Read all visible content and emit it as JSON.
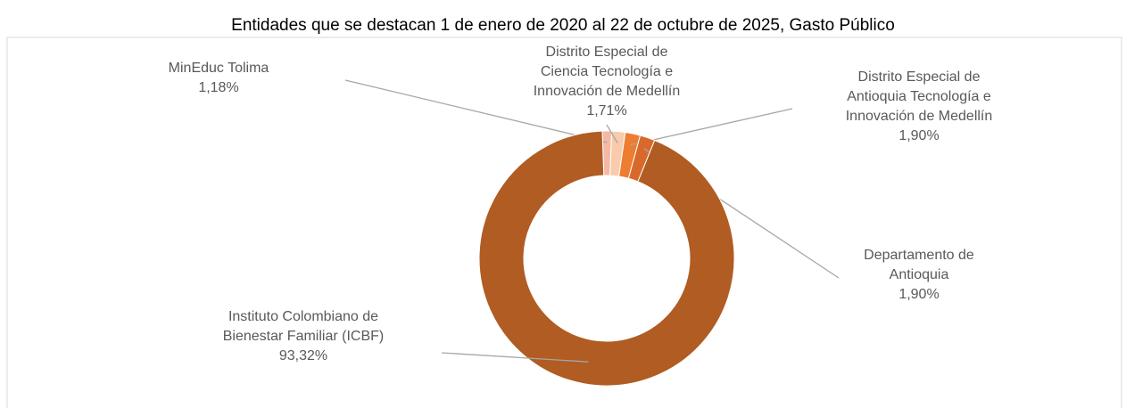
{
  "chart_data": {
    "type": "donut",
    "title": "Entidades que se destacan 1 de enero de 2020 al 22 de octubre de 2025, Gasto Público",
    "categories": [
      "MinEduc Tolima",
      "Distrito Especial de Ciencia Tecnología e Innovación de Medellín",
      "Distrito Especial de Antioquia Tecnología e Innovación de Medellín",
      "Departamento de Antioquia",
      "Instituto Colombiano de Bienestar Familiar (ICBF)"
    ],
    "values": [
      1.18,
      1.71,
      1.9,
      1.9,
      93.32
    ],
    "value_labels": [
      "1,18%",
      "1,71%",
      "1,90%",
      "1,90%",
      "93,32%"
    ],
    "colors": [
      "#f4b8a4",
      "#f8cbad",
      "#ed7d31",
      "#d9692a",
      "#b05c22"
    ]
  }
}
